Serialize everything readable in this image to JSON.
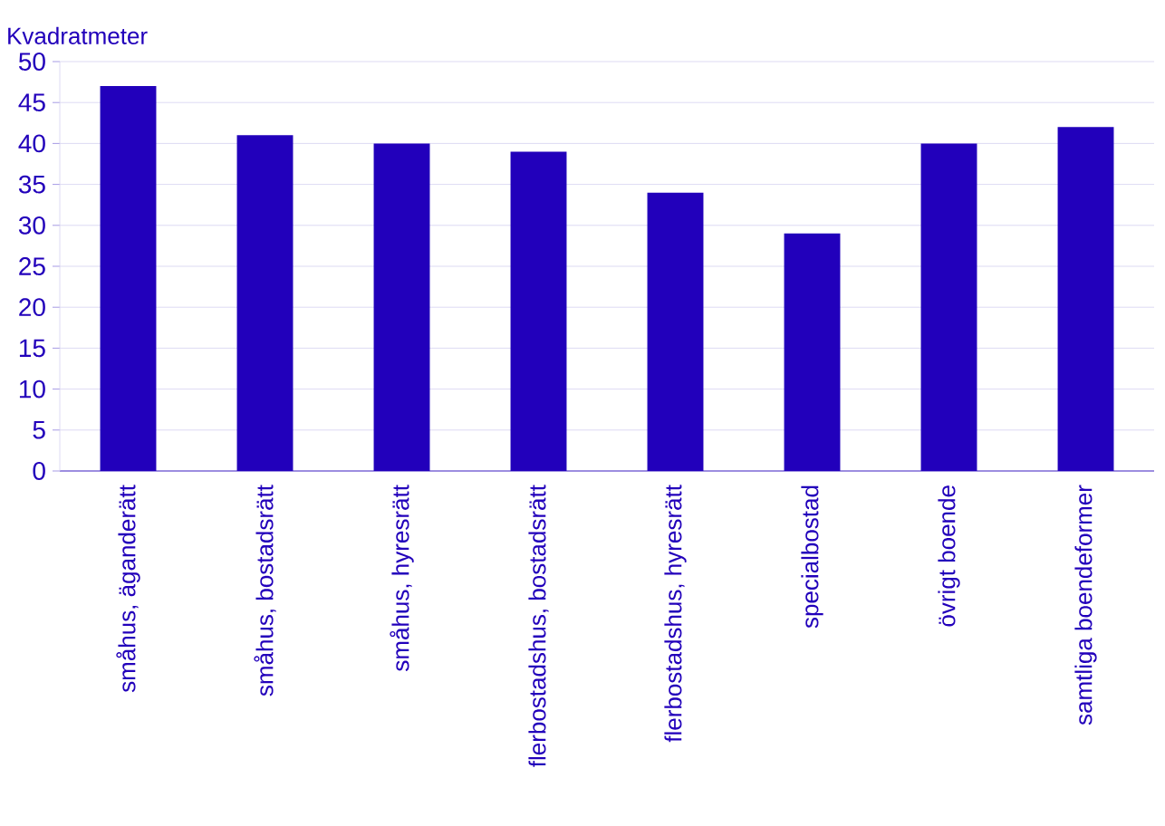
{
  "chart_data": {
    "type": "bar",
    "ylabel": "Kvadratmeter",
    "categories": [
      "småhus, äganderätt",
      "småhus, bostadsrätt",
      "småhus, hyresrätt",
      "flerbostadshus, bostadsrätt",
      "flerbostadshus, hyresrätt",
      "specialbostad",
      "övrigt boende",
      "samtliga boendeformer"
    ],
    "values": [
      47,
      41,
      40,
      39,
      34,
      29,
      40,
      42
    ],
    "color": "#2200bb",
    "ylim": [
      0,
      50
    ],
    "yticks": [
      0,
      5,
      10,
      15,
      20,
      25,
      30,
      35,
      40,
      45,
      50
    ],
    "grid": "y"
  }
}
